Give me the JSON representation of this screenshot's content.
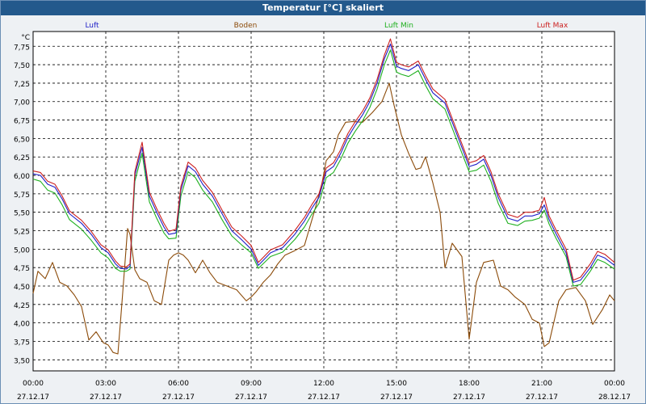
{
  "window": {
    "title": "Temperatur [°C] skaliert"
  },
  "chart_data": {
    "type": "line",
    "title": "Temperatur [°C] skaliert",
    "ylabel": "°C",
    "ylim": [
      3.35,
      7.95
    ],
    "xlim": [
      0,
      24
    ],
    "yticks": [
      "3,50",
      "3,75",
      "4,00",
      "4,25",
      "4,50",
      "4,75",
      "5,00",
      "5,25",
      "5,50",
      "5,75",
      "6,00",
      "6,25",
      "6,50",
      "6,75",
      "7,00",
      "7,25",
      "7,50",
      "7,75"
    ],
    "xticks": [
      {
        "time": "00:00",
        "date": "27.12.17"
      },
      {
        "time": "03:00",
        "date": "27.12.17"
      },
      {
        "time": "06:00",
        "date": "27.12.17"
      },
      {
        "time": "09:00",
        "date": "27.12.17"
      },
      {
        "time": "12:00",
        "date": "27.12.17"
      },
      {
        "time": "15:00",
        "date": "27.12.17"
      },
      {
        "time": "18:00",
        "date": "27.12.17"
      },
      {
        "time": "21:00",
        "date": "27.12.17"
      },
      {
        "time": "00:00",
        "date": "28.12.17"
      }
    ],
    "grid": true,
    "legend_position": "top",
    "series": [
      {
        "name": "Luft",
        "color": "#1f1fc8",
        "x": [
          0,
          0.3,
          0.6,
          0.9,
          1.2,
          1.5,
          2.0,
          2.4,
          2.8,
          3.1,
          3.4,
          3.6,
          3.85,
          4.0,
          4.2,
          4.5,
          4.8,
          5.1,
          5.4,
          5.6,
          5.9,
          6.1,
          6.4,
          6.7,
          7.0,
          7.4,
          7.8,
          8.2,
          8.6,
          9.0,
          9.3,
          9.8,
          10.3,
          10.8,
          11.2,
          11.5,
          11.8,
          12.1,
          12.4,
          12.7,
          13.0,
          13.3,
          13.6,
          13.9,
          14.2,
          14.5,
          14.75,
          15.0,
          15.2,
          15.5,
          15.9,
          16.2,
          16.5,
          17.0,
          17.5,
          18.0,
          18.3,
          18.6,
          18.9,
          19.2,
          19.6,
          20.0,
          20.3,
          20.6,
          20.9,
          21.1,
          21.3,
          21.6,
          22.0,
          22.3,
          22.6,
          23.0,
          23.3,
          23.6,
          24.0
        ],
        "y": [
          6.02,
          6.0,
          5.88,
          5.84,
          5.68,
          5.48,
          5.35,
          5.2,
          5.02,
          4.95,
          4.8,
          4.74,
          4.73,
          4.77,
          6.0,
          6.38,
          5.72,
          5.5,
          5.3,
          5.2,
          5.22,
          5.8,
          6.13,
          6.05,
          5.88,
          5.72,
          5.48,
          5.25,
          5.13,
          5.0,
          4.78,
          4.95,
          5.02,
          5.2,
          5.38,
          5.55,
          5.7,
          6.05,
          6.12,
          6.3,
          6.52,
          6.68,
          6.82,
          7.0,
          7.25,
          7.58,
          7.78,
          7.48,
          7.45,
          7.42,
          7.5,
          7.3,
          7.12,
          6.98,
          6.55,
          6.12,
          6.15,
          6.22,
          6.0,
          5.7,
          5.42,
          5.38,
          5.45,
          5.45,
          5.48,
          5.6,
          5.4,
          5.2,
          4.95,
          4.55,
          4.58,
          4.75,
          4.92,
          4.88,
          4.78
        ]
      },
      {
        "name": "Boden",
        "color": "#8b4a08",
        "x": [
          0,
          0.2,
          0.5,
          0.8,
          1.1,
          1.4,
          1.7,
          2.0,
          2.3,
          2.6,
          2.9,
          3.1,
          3.3,
          3.5,
          3.65,
          3.9,
          4.0,
          4.2,
          4.4,
          4.7,
          5.0,
          5.3,
          5.6,
          5.8,
          6.0,
          6.2,
          6.4,
          6.7,
          7.0,
          7.3,
          7.6,
          8.0,
          8.4,
          8.8,
          9.0,
          9.2,
          9.5,
          9.8,
          10.1,
          10.4,
          10.8,
          11.2,
          11.6,
          11.9,
          12.1,
          12.4,
          12.6,
          12.9,
          13.2,
          13.6,
          14.0,
          14.4,
          14.7,
          14.9,
          15.2,
          15.5,
          15.8,
          16.0,
          16.2,
          16.5,
          16.8,
          17.0,
          17.3,
          17.7,
          18.0,
          18.3,
          18.6,
          19.0,
          19.3,
          19.6,
          19.9,
          20.3,
          20.6,
          20.9,
          21.1,
          21.3,
          21.7,
          22.0,
          22.4,
          22.8,
          23.1,
          23.5,
          23.8,
          24.0
        ],
        "y": [
          4.4,
          4.7,
          4.6,
          4.82,
          4.55,
          4.5,
          4.38,
          4.22,
          3.77,
          3.88,
          3.73,
          3.7,
          3.6,
          3.58,
          4.2,
          5.28,
          5.2,
          4.72,
          4.6,
          4.55,
          4.3,
          4.25,
          4.85,
          4.92,
          4.95,
          4.92,
          4.85,
          4.68,
          4.85,
          4.68,
          4.55,
          4.5,
          4.45,
          4.3,
          4.35,
          4.42,
          4.55,
          4.65,
          4.8,
          4.92,
          4.98,
          5.05,
          5.5,
          5.85,
          6.2,
          6.32,
          6.55,
          6.72,
          6.73,
          6.72,
          6.85,
          7.0,
          7.25,
          6.95,
          6.55,
          6.3,
          6.08,
          6.1,
          6.25,
          5.9,
          5.5,
          4.75,
          5.08,
          4.9,
          3.78,
          4.55,
          4.82,
          4.85,
          4.5,
          4.45,
          4.35,
          4.25,
          4.05,
          4.0,
          3.68,
          3.73,
          4.3,
          4.45,
          4.48,
          4.3,
          3.98,
          4.18,
          4.38,
          4.3
        ]
      },
      {
        "name": "Luft Min",
        "color": "#1fb01f",
        "x": [
          0,
          0.3,
          0.6,
          0.9,
          1.2,
          1.5,
          2.0,
          2.4,
          2.8,
          3.1,
          3.4,
          3.6,
          3.85,
          4.0,
          4.2,
          4.5,
          4.8,
          5.1,
          5.4,
          5.6,
          5.9,
          6.1,
          6.4,
          6.7,
          7.0,
          7.4,
          7.8,
          8.2,
          8.6,
          9.0,
          9.3,
          9.8,
          10.3,
          10.8,
          11.2,
          11.5,
          11.8,
          12.1,
          12.4,
          12.7,
          13.0,
          13.3,
          13.6,
          13.9,
          14.2,
          14.5,
          14.75,
          15.0,
          15.2,
          15.5,
          15.9,
          16.2,
          16.5,
          17.0,
          17.5,
          18.0,
          18.3,
          18.6,
          18.9,
          19.2,
          19.6,
          20.0,
          20.3,
          20.6,
          20.9,
          21.1,
          21.3,
          21.6,
          22.0,
          22.3,
          22.6,
          23.0,
          23.3,
          23.6,
          24.0
        ],
        "y": [
          5.95,
          5.92,
          5.8,
          5.76,
          5.6,
          5.4,
          5.27,
          5.12,
          4.95,
          4.88,
          4.74,
          4.7,
          4.7,
          4.73,
          5.92,
          6.3,
          5.64,
          5.42,
          5.22,
          5.14,
          5.15,
          5.72,
          6.05,
          5.97,
          5.8,
          5.64,
          5.4,
          5.18,
          5.06,
          4.95,
          4.74,
          4.9,
          4.96,
          5.13,
          5.3,
          5.47,
          5.62,
          5.97,
          6.04,
          6.22,
          6.44,
          6.6,
          6.74,
          6.92,
          7.17,
          7.5,
          7.7,
          7.4,
          7.37,
          7.34,
          7.42,
          7.22,
          7.04,
          6.9,
          6.47,
          6.05,
          6.07,
          6.14,
          5.92,
          5.62,
          5.35,
          5.32,
          5.38,
          5.39,
          5.42,
          5.53,
          5.34,
          5.14,
          4.9,
          4.5,
          4.52,
          4.7,
          4.86,
          4.82,
          4.73
        ]
      },
      {
        "name": "Luft Max",
        "color": "#cc1f1f",
        "x": [
          0,
          0.3,
          0.6,
          0.9,
          1.2,
          1.5,
          2.0,
          2.4,
          2.8,
          3.1,
          3.4,
          3.6,
          3.85,
          4.0,
          4.2,
          4.5,
          4.8,
          5.1,
          5.4,
          5.6,
          5.9,
          6.1,
          6.4,
          6.7,
          7.0,
          7.4,
          7.8,
          8.2,
          8.6,
          9.0,
          9.3,
          9.8,
          10.3,
          10.8,
          11.2,
          11.5,
          11.8,
          12.1,
          12.4,
          12.7,
          13.0,
          13.3,
          13.6,
          13.9,
          14.2,
          14.5,
          14.75,
          15.0,
          15.2,
          15.5,
          15.9,
          16.2,
          16.5,
          17.0,
          17.5,
          18.0,
          18.3,
          18.6,
          18.9,
          19.2,
          19.6,
          20.0,
          20.3,
          20.6,
          20.9,
          21.1,
          21.3,
          21.6,
          22.0,
          22.3,
          22.6,
          23.0,
          23.3,
          23.6,
          24.0
        ],
        "y": [
          6.06,
          6.04,
          5.92,
          5.88,
          5.72,
          5.52,
          5.39,
          5.24,
          5.06,
          4.99,
          4.84,
          4.77,
          4.76,
          4.8,
          6.05,
          6.45,
          5.77,
          5.55,
          5.35,
          5.24,
          5.27,
          5.85,
          6.18,
          6.1,
          5.93,
          5.77,
          5.53,
          5.3,
          5.18,
          5.05,
          4.82,
          4.99,
          5.06,
          5.25,
          5.43,
          5.6,
          5.75,
          6.1,
          6.17,
          6.35,
          6.57,
          6.73,
          6.87,
          7.05,
          7.3,
          7.63,
          7.85,
          7.53,
          7.5,
          7.47,
          7.55,
          7.35,
          7.17,
          7.03,
          6.6,
          6.17,
          6.2,
          6.27,
          6.05,
          5.75,
          5.47,
          5.43,
          5.5,
          5.5,
          5.53,
          5.7,
          5.45,
          5.25,
          5.0,
          4.58,
          4.62,
          4.8,
          4.97,
          4.93,
          4.82
        ]
      }
    ]
  }
}
